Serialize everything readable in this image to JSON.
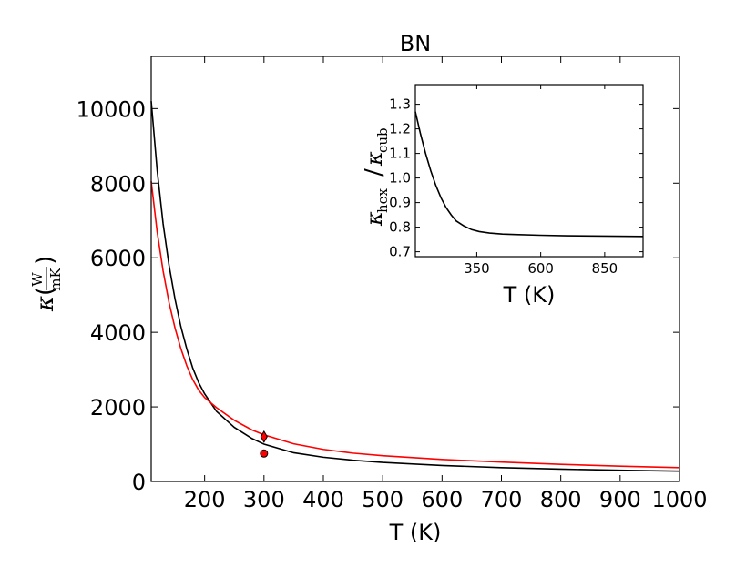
{
  "chart_data": [
    {
      "type": "line",
      "title": "BN",
      "xlabel": "T (K)",
      "ylabel": {
        "symbol": "κ",
        "numerator": "W",
        "denominator": "mK"
      },
      "xlim": [
        110,
        1000
      ],
      "ylim": [
        0,
        11400
      ],
      "xticks": [
        "200",
        "300",
        "400",
        "500",
        "600",
        "700",
        "800",
        "900",
        "1000"
      ],
      "yticks": [
        "0",
        "2000",
        "4000",
        "6000",
        "8000",
        "10000"
      ],
      "grid": false,
      "series": [
        {
          "color": "#000000",
          "x": [
            110,
            120,
            130,
            140,
            150,
            160,
            170,
            180,
            190,
            200,
            220,
            250,
            280,
            300,
            350,
            400,
            450,
            500,
            600,
            700,
            800,
            900,
            1000
          ],
          "y": [
            10200,
            8350,
            6920,
            5800,
            4900,
            4150,
            3550,
            3040,
            2650,
            2350,
            1880,
            1450,
            1150,
            1000,
            770,
            650,
            570,
            510,
            430,
            370,
            330,
            300,
            275
          ]
        },
        {
          "color": "#ff0000",
          "x": [
            110,
            120,
            130,
            140,
            150,
            160,
            170,
            180,
            190,
            200,
            220,
            250,
            280,
            300,
            350,
            400,
            450,
            500,
            600,
            700,
            800,
            900,
            1000
          ],
          "y": [
            8050,
            6700,
            5650,
            4800,
            4120,
            3560,
            3100,
            2730,
            2450,
            2250,
            1980,
            1640,
            1380,
            1250,
            1010,
            860,
            760,
            690,
            590,
            520,
            460,
            410,
            370
          ]
        }
      ],
      "markers": [
        {
          "shape": "diamond",
          "x": 300,
          "y": 1200,
          "color": "#ff0000"
        },
        {
          "shape": "circle",
          "x": 300,
          "y": 750,
          "color": "#ff0000"
        }
      ]
    },
    {
      "type": "line",
      "title": "",
      "xlabel": "T (K)",
      "ylabel": {
        "symbol": "κ",
        "top_sub": "hex",
        "bottom_sub": "cub"
      },
      "xlim": [
        110,
        1000
      ],
      "ylim": [
        0.68,
        1.38
      ],
      "xticks": [
        "350",
        "600",
        "850"
      ],
      "yticks": [
        "0.7",
        "0.8",
        "0.9",
        "1.0",
        "1.1",
        "1.2",
        "1.3"
      ],
      "grid": false,
      "series": [
        {
          "color": "#000000",
          "x": [
            110,
            130,
            150,
            170,
            190,
            210,
            230,
            250,
            270,
            300,
            330,
            360,
            400,
            450,
            500,
            600,
            700,
            800,
            900,
            1000
          ],
          "y": [
            1.27,
            1.18,
            1.1,
            1.03,
            0.97,
            0.92,
            0.88,
            0.85,
            0.825,
            0.805,
            0.79,
            0.782,
            0.776,
            0.772,
            0.77,
            0.767,
            0.765,
            0.764,
            0.763,
            0.762
          ]
        }
      ]
    }
  ]
}
